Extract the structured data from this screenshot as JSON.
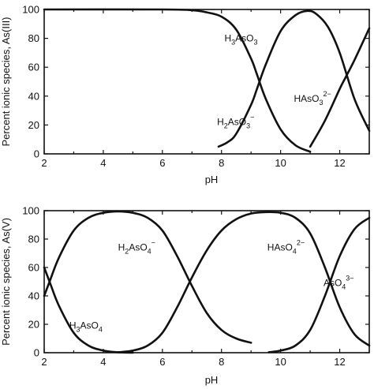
{
  "chart_data": [
    {
      "type": "line",
      "xlabel": "pH",
      "ylabel": "Percent ionic species, As(III)",
      "xlim": [
        2,
        13
      ],
      "ylim": [
        0,
        100
      ],
      "xticks": [
        2,
        4,
        6,
        8,
        10,
        12
      ],
      "yticks": [
        0,
        20,
        40,
        60,
        80,
        100
      ],
      "grid": false,
      "series": [
        {
          "name": "H3AsO3",
          "label_parts": [
            [
              "H",
              ""
            ],
            [
              "3",
              "sub"
            ],
            [
              "AsO",
              ""
            ],
            [
              "3",
              "sub"
            ]
          ],
          "x": [
            2,
            6,
            7,
            7.5,
            8,
            8.5,
            9,
            9.2,
            9.5,
            10,
            10.5,
            11
          ],
          "y": [
            100,
            100,
            99.5,
            98,
            95,
            86,
            66,
            55,
            38,
            17,
            6,
            1.5
          ]
        },
        {
          "name": "H2AsO3-",
          "label_parts": [
            [
              "H",
              ""
            ],
            [
              "2",
              "sub"
            ],
            [
              "AsO",
              ""
            ],
            [
              "3",
              "sub"
            ],
            [
              "−",
              "sup"
            ]
          ],
          "x": [
            7.9,
            8.2,
            8.5,
            9,
            9.2,
            9.5,
            10,
            10.5,
            10.9,
            11.2,
            11.6,
            12,
            12.5,
            13
          ],
          "y": [
            5,
            8,
            14,
            34,
            45,
            62,
            85,
            96,
            99,
            97,
            88,
            70,
            38,
            16
          ]
        },
        {
          "name": "HAsO32-",
          "label_parts": [
            [
              "HAsO",
              ""
            ],
            [
              "3",
              "sub"
            ],
            [
              "2−",
              "sup"
            ]
          ],
          "x": [
            11,
            11.5,
            12,
            12.2,
            12.5,
            13
          ],
          "y": [
            5,
            23,
            45,
            53,
            65,
            87
          ]
        }
      ],
      "labels": [
        {
          "series": "H3AsO3",
          "at": [
            8.1,
            78
          ]
        },
        {
          "series": "H2AsO3-",
          "at": [
            7.85,
            20
          ]
        },
        {
          "series": "HAsO32-",
          "at": [
            10.45,
            36
          ]
        }
      ]
    },
    {
      "type": "line",
      "xlabel": "pH",
      "ylabel": "Percent ionic species, As(V)",
      "xlim": [
        2,
        13
      ],
      "ylim": [
        0,
        100
      ],
      "xticks": [
        2,
        4,
        6,
        8,
        10,
        12
      ],
      "yticks": [
        0,
        20,
        40,
        60,
        80,
        100
      ],
      "grid": false,
      "series": [
        {
          "name": "H3AsO4",
          "label_parts": [
            [
              "H",
              ""
            ],
            [
              "3",
              "sub"
            ],
            [
              "AsO",
              ""
            ],
            [
              "4",
              "sub"
            ]
          ],
          "x": [
            2,
            2.2,
            2.5,
            3,
            3.5,
            4,
            4.5,
            5
          ],
          "y": [
            60,
            49,
            33,
            14,
            5,
            1.5,
            0.3,
            0
          ]
        },
        {
          "name": "H2AsO4-",
          "label_parts": [
            [
              "H",
              ""
            ],
            [
              "2",
              "sub"
            ],
            [
              "AsO",
              ""
            ],
            [
              "4",
              "sub"
            ],
            [
              "−",
              "sup"
            ]
          ],
          "x": [
            2,
            2.2,
            2.5,
            3,
            3.5,
            4,
            4.5,
            5,
            5.5,
            6,
            6.5,
            7,
            7.5,
            8,
            8.5,
            9
          ],
          "y": [
            40,
            51,
            67,
            86,
            95,
            98.5,
            99.5,
            98.5,
            95,
            86,
            68,
            47,
            28,
            16,
            10,
            7
          ]
        },
        {
          "name": "HAsO42-",
          "label_parts": [
            [
              "HAsO",
              ""
            ],
            [
              "4",
              "sub"
            ],
            [
              "2−",
              "sup"
            ]
          ],
          "x": [
            4.5,
            5,
            5.5,
            6,
            6.5,
            7,
            7.5,
            8,
            8.5,
            9,
            9.5,
            10,
            10.5,
            11,
            11.5,
            12,
            12.5,
            13
          ],
          "y": [
            0.3,
            1.5,
            5,
            14,
            32,
            53,
            72,
            86,
            94,
            98,
            99,
            98.5,
            95,
            84,
            60,
            32,
            13,
            5
          ]
        },
        {
          "name": "AsO43-",
          "label_parts": [
            [
              "AsO",
              ""
            ],
            [
              "4",
              "sub"
            ],
            [
              "3−",
              "sup"
            ]
          ],
          "x": [
            9.6,
            10,
            10.5,
            11,
            11.5,
            12,
            12.5,
            13
          ],
          "y": [
            0.3,
            1.5,
            5,
            16,
            40,
            68,
            87,
            95
          ]
        }
      ],
      "labels": [
        {
          "series": "H3AsO4",
          "at": [
            2.85,
            17
          ]
        },
        {
          "series": "H2AsO4-",
          "at": [
            4.5,
            72
          ]
        },
        {
          "series": "HAsO42-",
          "at": [
            9.55,
            72
          ]
        },
        {
          "series": "AsO43-",
          "at": [
            11.45,
            47
          ]
        }
      ]
    }
  ]
}
